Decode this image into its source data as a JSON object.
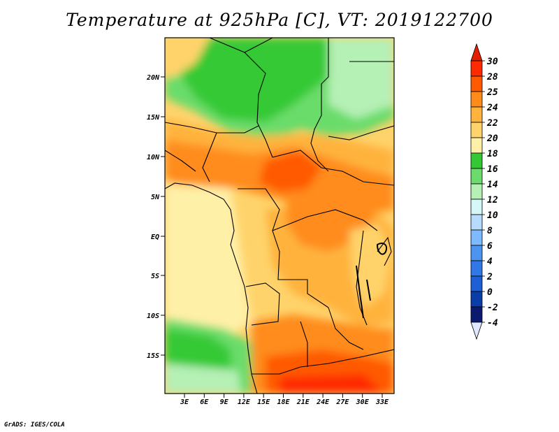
{
  "title": "Temperature at 925hPa [C], VT: 2019122700",
  "footer": "GrADS: IGES/COLA",
  "map": {
    "lat_labels": [
      "20N",
      "15N",
      "10N",
      "5N",
      "EQ",
      "5S",
      "10S",
      "15S"
    ],
    "lon_labels": [
      "3E",
      "6E",
      "9E",
      "12E",
      "15E",
      "18E",
      "21E",
      "24E",
      "27E",
      "30E",
      "33E"
    ]
  },
  "colorbar": {
    "labels": [
      "30",
      "28",
      "25",
      "24",
      "22",
      "20",
      "18",
      "16",
      "14",
      "12",
      "10",
      "8",
      "6",
      "4",
      "2",
      "0",
      "-2",
      "-4"
    ],
    "colors": [
      "#ff2a00",
      "#ff5a00",
      "#ff8c1a",
      "#ffb33c",
      "#ffd36b",
      "#fff0a8",
      "#34c934",
      "#6bdc6b",
      "#b5f0b5",
      "#d6f7f7",
      "#b5dcff",
      "#7dbaff",
      "#4d94f0",
      "#2f78e6",
      "#1e5fd6",
      "#0b3da8",
      "#0a1a6e"
    ],
    "top_color": "#e41e00",
    "bottom_color": "#e0e8ff"
  }
}
